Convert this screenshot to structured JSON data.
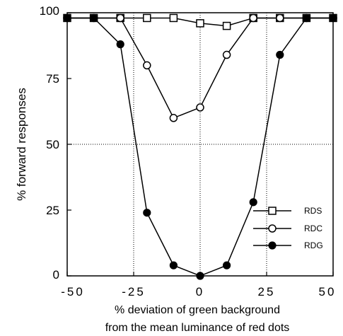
{
  "chart_data": {
    "type": "line",
    "title": "",
    "xlabel_lines": [
      "% deviation of green background",
      "from the mean luminance of red dots"
    ],
    "ylabel": "% forward responses",
    "xlim": [
      -50,
      50
    ],
    "ylim": [
      0,
      100
    ],
    "x_ticks": [
      -50,
      -25,
      0,
      25,
      50
    ],
    "x_tick_labels": [
      "-50",
      "-25",
      "0",
      "25",
      "50"
    ],
    "y_ticks": [
      0,
      25,
      50,
      75,
      100
    ],
    "y_tick_labels": [
      "0",
      "25",
      "50",
      "75",
      "100"
    ],
    "reference_lines": {
      "vertical_dotted": [
        -25,
        0,
        25
      ],
      "horizontal_dotted": [
        50
      ]
    },
    "grid": false,
    "legend_position": "bottom-right",
    "series": [
      {
        "name": "RDS",
        "marker": "open-square",
        "x": [
          -50,
          -40,
          -30,
          -20,
          -10,
          0,
          10,
          20,
          30,
          40,
          50
        ],
        "y": [
          98,
          98,
          98,
          98,
          98,
          96,
          95,
          98,
          98,
          98,
          98
        ]
      },
      {
        "name": "RDC",
        "marker": "open-circle",
        "x": [
          -50,
          -40,
          -30,
          -20,
          -10,
          0,
          10,
          20,
          30,
          40,
          50
        ],
        "y": [
          98,
          98,
          98,
          80,
          60,
          64,
          84,
          98,
          98,
          98,
          98
        ]
      },
      {
        "name": "RDG",
        "marker": "filled-circle",
        "x": [
          -50,
          -40,
          -30,
          -20,
          -10,
          0,
          10,
          20,
          30,
          40,
          50
        ],
        "y": [
          98,
          98,
          88,
          24,
          4,
          0,
          4,
          28,
          84,
          98,
          98
        ]
      }
    ],
    "colors": {
      "line": "#000000",
      "background": "#ffffff"
    }
  }
}
